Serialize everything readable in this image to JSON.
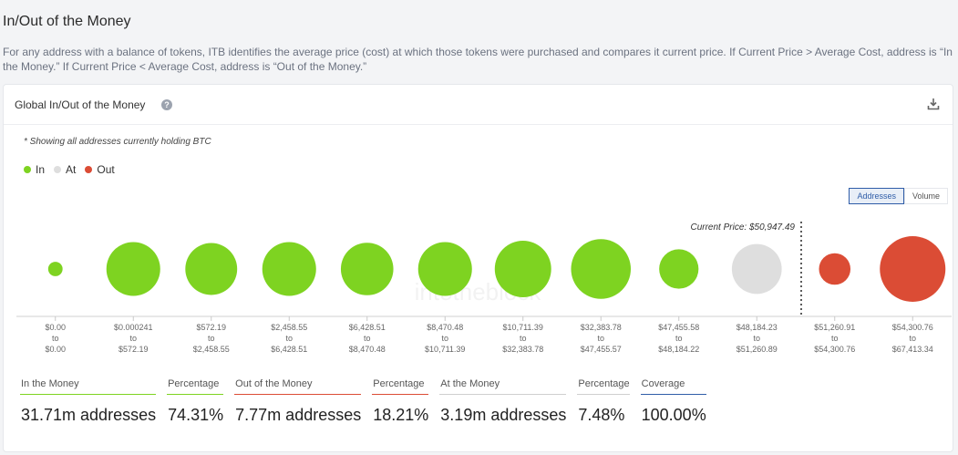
{
  "page": {
    "title": "In/Out of the Money",
    "description": "For any address with a balance of tokens, ITB identifies the average price (cost) at which those tokens were purchased and compares it current price. If Current Price > Average Cost, address is “In the Money.” If Current Price < Average Cost, address is “Out of the Money.”"
  },
  "card": {
    "title": "Global In/Out of the Money",
    "help_icon": "?",
    "note": "* Showing all addresses currently holding BTC",
    "watermark": "intotheblock"
  },
  "legend": [
    {
      "label": "In",
      "color": "#7ed321"
    },
    {
      "label": "At",
      "color": "#dedede"
    },
    {
      "label": "Out",
      "color": "#db4c35"
    }
  ],
  "toggle": {
    "addresses": "Addresses",
    "volume": "Volume",
    "active": "addresses"
  },
  "chart_data": {
    "type": "bubble",
    "current_price_label": "Current Price: $50,947.49",
    "current_price_after_index": 9,
    "buckets": [
      {
        "low": "$0.00",
        "to": "to",
        "high": "$0.00",
        "status": "in",
        "relative_size": 0.22
      },
      {
        "low": "$0.000241",
        "to": "to",
        "high": "$572.19",
        "status": "in",
        "relative_size": 0.82
      },
      {
        "low": "$572.19",
        "to": "to",
        "high": "$2,458.55",
        "status": "in",
        "relative_size": 0.79
      },
      {
        "low": "$2,458.55",
        "to": "to",
        "high": "$6,428.51",
        "status": "in",
        "relative_size": 0.82
      },
      {
        "low": "$6,428.51",
        "to": "to",
        "high": "$8,470.48",
        "status": "in",
        "relative_size": 0.8
      },
      {
        "low": "$8,470.48",
        "to": "to",
        "high": "$10,711.39",
        "status": "in",
        "relative_size": 0.82
      },
      {
        "low": "$10,711.39",
        "to": "to",
        "high": "$32,383.78",
        "status": "in",
        "relative_size": 0.86
      },
      {
        "low": "$32,383.78",
        "to": "to",
        "high": "$47,455.57",
        "status": "in",
        "relative_size": 0.91
      },
      {
        "low": "$47,455.58",
        "to": "to",
        "high": "$48,184.22",
        "status": "in",
        "relative_size": 0.6
      },
      {
        "low": "$48,184.23",
        "to": "to",
        "high": "$51,260.89",
        "status": "at",
        "relative_size": 0.76
      },
      {
        "low": "$51,260.91",
        "to": "to",
        "high": "$54,300.76",
        "status": "out",
        "relative_size": 0.48
      },
      {
        "low": "$54,300.76",
        "to": "to",
        "high": "$67,413.34",
        "status": "out",
        "relative_size": 1.0
      }
    ],
    "colors": {
      "in": "#7ed321",
      "at": "#dedede",
      "out": "#db4c35"
    }
  },
  "stats": [
    {
      "label": "In the Money",
      "value": "31.71m addresses",
      "color": "#7ed321"
    },
    {
      "label": "Percentage",
      "value": "74.31%",
      "color": "#7ed321"
    },
    {
      "label": "Out of the Money",
      "value": "7.77m addresses",
      "color": "#db4c35"
    },
    {
      "label": "Percentage",
      "value": "18.21%",
      "color": "#db4c35"
    },
    {
      "label": "At the Money",
      "value": "3.19m addresses",
      "color": "#cfcfcf"
    },
    {
      "label": "Percentage",
      "value": "7.48%",
      "color": "#cfcfcf"
    },
    {
      "label": "Coverage",
      "value": "100.00%",
      "color": "#2f5da8"
    }
  ]
}
